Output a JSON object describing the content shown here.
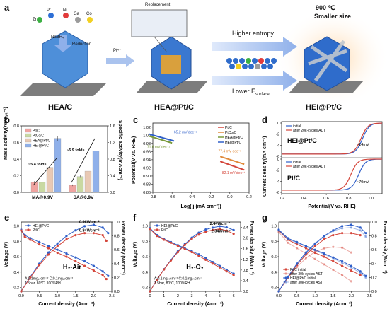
{
  "panel_a": {
    "letter": "a",
    "elements": [
      "Zr",
      "Pt",
      "Ni",
      "Ga",
      "Co"
    ],
    "element_colors": {
      "Zr": "#3cb043",
      "Pt": "#2e6fd6",
      "Ni": "#e23b3b",
      "Ga": "#9b9b9b",
      "Co": "#f2d022"
    },
    "step1_top": "NaBH₄",
    "step1_bottom": "Reduction",
    "step2": "Pt⁴⁺",
    "replacement": "Replacement",
    "higher_entropy": "Higher entropy",
    "lower_esurface": "Lower E",
    "lower_esurface_sub": "surface",
    "temp": "900 ℃",
    "smaller": "Smaller size",
    "label_hea": "HEA/C",
    "label_heapt": "HEA@Pt/C",
    "label_heipt": "HEI@Pt/C"
  },
  "panel_b": {
    "letter": "b",
    "ylabel_left": "Mass activity(Amgₚₜ⁻¹)",
    "ylabel_right": "Specific activity(mAcm⁻²)",
    "xticks": [
      "MA@0.9V",
      "SA@0.9V"
    ],
    "left_ticks": [
      "0.0",
      "0.2",
      "0.4",
      "0.6",
      "0.8"
    ],
    "right_ticks": [
      "0.0",
      "0.4",
      "0.8",
      "1.2",
      "1.6"
    ],
    "fold_ma": "~5.4 folds",
    "fold_sa": "~5.9 folds",
    "legend": [
      "Pt/C",
      "PtCo/C",
      "HEA@Pt/C",
      "HEI@Pt/C"
    ]
  },
  "panel_c": {
    "letter": "c",
    "ylabel": "Potential(V vs. RHE)",
    "xlabel": "Log(|j|(mA cm⁻²))",
    "xticks": [
      "-0.8",
      "-0.6",
      "-0.4",
      "-0.2",
      "0.0",
      "0.2"
    ],
    "yticks": [
      "0.86",
      "0.88",
      "0.90",
      "0.92",
      "0.94",
      "0.96",
      "0.98",
      "1.00",
      "1.02"
    ],
    "legend": [
      "Pt/C",
      "PtCo/C",
      "HEA@Pt/C",
      "HEI@Pt/C"
    ],
    "slopes": [
      "65.2 mV dec⁻¹",
      "71.6 mV dec⁻¹",
      "77.4 mV dec⁻¹",
      "82.1 mV dec⁻¹"
    ]
  },
  "panel_d": {
    "letter": "d",
    "ylabel": "Current density(mA cm⁻²)",
    "xlabel": "Potential(V vs. RHE)",
    "xticks": [
      "0.2",
      "0.4",
      "0.6",
      "0.8",
      "1.0"
    ],
    "yticks_top": [
      "0",
      "-2",
      "-4",
      "-6"
    ],
    "yticks_bottom": [
      "0",
      "-2",
      "-4",
      "-6"
    ],
    "legend": [
      "initial",
      "after 20k-cycles ADT"
    ],
    "top_title": "HEI@Pt/C",
    "top_shift": "~14mV",
    "bottom_title": "Pt/C",
    "bottom_shift": "~70mV"
  },
  "panel_e": {
    "letter": "e",
    "ylabel_left": "Voltage (V)",
    "ylabel_right": "Power density (Wcm⁻²)",
    "xlabel": "Current density (Acm⁻²)",
    "xticks": [
      "0.0",
      "0.5",
      "1.0",
      "1.5",
      "2.0",
      "2.5"
    ],
    "yticks_left": [
      "0.2",
      "0.4",
      "0.6",
      "0.8",
      "1.0"
    ],
    "yticks_right": [
      "0.0",
      "0.2",
      "0.4",
      "0.6",
      "0.8",
      "1.0"
    ],
    "legend": [
      "HEI@Pt/C",
      "Pt/C"
    ],
    "peak1": "0.96Wcm⁻²",
    "peak2": "0.84Wcm⁻²",
    "gas": "H₂-Air",
    "cond1": "A:0.1mgₚₜcm⁻² C:0.1mgₚₜcm⁻²",
    "cond2": "1.5bar, 80°C, 100%RH"
  },
  "panel_f": {
    "letter": "f",
    "ylabel_left": "Voltage (V)",
    "ylabel_right": "Power density (Wcm⁻²)",
    "xlabel": "Current density (Acm⁻²)",
    "xticks": [
      "0",
      "1",
      "2",
      "3",
      "4",
      "5",
      "6"
    ],
    "yticks_left": [
      "0.2",
      "0.4",
      "0.6",
      "0.8",
      "1.0"
    ],
    "yticks_right": [
      "0.0",
      "0.4",
      "0.8",
      "1.2",
      "1.6",
      "2.0",
      "2.4"
    ],
    "legend": [
      "HEI@Pt/C",
      "Pt/C"
    ],
    "peak1": "2.44Wcm⁻²",
    "peak2": "2.34Wcm⁻²",
    "gas": "H₂-O₂",
    "cond1": "A:0.1mgₚₜcm⁻² C:0.1mgₚₜcm⁻²",
    "cond2": "1.5bar, 80°C, 100%RH"
  },
  "panel_g": {
    "letter": "g",
    "ylabel_left": "Voltage (V)",
    "ylabel_right": "Power density(Wcm⁻²)",
    "xlabel": "Current density (Acm⁻²)",
    "xticks": [
      "0.0",
      "0.5",
      "1.0",
      "1.5",
      "2.0",
      "2.5"
    ],
    "yticks_left": [
      "0.2",
      "0.4",
      "0.6",
      "0.8",
      "1.0"
    ],
    "yticks_right": [
      "0.0",
      "0.2",
      "0.4",
      "0.6",
      "0.8",
      "1.0"
    ],
    "legend": [
      "Pt/C initial",
      "after 30k-cycles AST",
      "HEI@Pt/C initial",
      "after 30k-cycles AST"
    ]
  },
  "colors": {
    "red": "#d4453a",
    "blue": "#2f5fc9",
    "pink": "#f0a3a0",
    "lightblue": "#8fb0ea",
    "green": "#c9d9a2",
    "tan": "#e9c9b4"
  },
  "chart_data": [
    {
      "type": "bar",
      "categories": [
        "MA@0.9V",
        "SA@0.9V"
      ],
      "series": [
        {
          "name": "Pt/C",
          "values": [
            0.12,
            0.17
          ]
        },
        {
          "name": "PtCo/C",
          "values": [
            0.12,
            0.38
          ]
        },
        {
          "name": "HEA@Pt/C",
          "values": [
            0.3,
            0.51
          ]
        },
        {
          "name": "HEI@Pt/C",
          "values": [
            0.65,
            1.0
          ]
        }
      ],
      "errors": [
        [
          0.015,
          0.02
        ],
        [
          0.015,
          0.03
        ],
        [
          0.02,
          0.03
        ],
        [
          0.03,
          0.04
        ]
      ],
      "ylim_left": [
        0,
        0.8
      ],
      "ylim_right": [
        0,
        1.6
      ]
    },
    {
      "type": "line",
      "title": "Tafel",
      "xlim": [
        -0.8,
        0.2
      ],
      "ylim": [
        0.86,
        1.03
      ],
      "series": [
        {
          "name": "Pt/C",
          "x": [
            -0.1,
            0.15
          ],
          "y": [
            0.936,
            0.915
          ]
        },
        {
          "name": "PtCo/C",
          "x": [
            -0.1,
            0.15
          ],
          "y": [
            0.948,
            0.929
          ]
        },
        {
          "name": "HEA@Pt/C",
          "x": [
            -0.84,
            -0.6
          ],
          "y": [
            0.998,
            0.981
          ]
        },
        {
          "name": "HEI@Pt/C",
          "x": [
            -0.84,
            -0.58
          ],
          "y": [
            1.003,
            0.986
          ]
        }
      ]
    },
    {
      "type": "line",
      "title": "LSV",
      "xlim": [
        0.2,
        1.1
      ],
      "panels": [
        {
          "title": "HEI@Pt/C",
          "series": [
            {
              "name": "initial",
              "e_half": 0.925
            },
            {
              "name": "after 20k-cycles ADT",
              "e_half": 0.911
            }
          ]
        },
        {
          "title": "Pt/C",
          "series": [
            {
              "name": "initial",
              "e_half": 0.89
            },
            {
              "name": "after 20k-cycles ADT",
              "e_half": 0.82
            }
          ]
        }
      ],
      "ylim": [
        -6,
        0
      ]
    },
    {
      "type": "line",
      "title": "H2-Air",
      "xlim": [
        0,
        2.5
      ],
      "series": [
        {
          "name": "HEI@Pt/C V",
          "x": [
            0.0,
            0.1,
            0.25,
            0.5,
            0.75,
            1.0,
            1.25,
            1.5,
            1.75,
            2.0,
            2.25,
            2.4
          ],
          "y": [
            0.95,
            0.88,
            0.84,
            0.79,
            0.74,
            0.69,
            0.64,
            0.59,
            0.54,
            0.48,
            0.41,
            0.35
          ]
        },
        {
          "name": "Pt/C V",
          "x": [
            0.0,
            0.1,
            0.25,
            0.5,
            0.75,
            1.0,
            1.25,
            1.5,
            1.75,
            2.0,
            2.25,
            2.35
          ],
          "y": [
            0.94,
            0.86,
            0.82,
            0.76,
            0.71,
            0.65,
            0.6,
            0.54,
            0.48,
            0.42,
            0.36,
            0.31
          ]
        },
        {
          "name": "HEI@Pt/C P",
          "x": [
            0.0,
            0.25,
            0.5,
            0.75,
            1.0,
            1.25,
            1.5,
            1.75,
            2.0,
            2.25,
            2.4
          ],
          "y": [
            0.0,
            0.21,
            0.4,
            0.56,
            0.69,
            0.8,
            0.88,
            0.94,
            0.96,
            0.92,
            0.84
          ]
        },
        {
          "name": "Pt/C P",
          "x": [
            0.0,
            0.25,
            0.5,
            0.75,
            1.0,
            1.25,
            1.5,
            1.75,
            2.0,
            2.25,
            2.35
          ],
          "y": [
            0.0,
            0.2,
            0.38,
            0.53,
            0.65,
            0.75,
            0.81,
            0.84,
            0.84,
            0.81,
            0.73
          ]
        }
      ]
    },
    {
      "type": "line",
      "title": "H2-O2",
      "xlim": [
        0,
        6.5
      ],
      "series": [
        {
          "name": "HEI@Pt/C V",
          "x": [
            0,
            0.5,
            1,
            1.5,
            2,
            2.5,
            3,
            3.5,
            4,
            4.5,
            5,
            5.5,
            6
          ],
          "y": [
            0.97,
            0.88,
            0.83,
            0.79,
            0.75,
            0.71,
            0.67,
            0.63,
            0.58,
            0.53,
            0.48,
            0.43,
            0.38
          ]
        },
        {
          "name": "Pt/C V",
          "x": [
            0,
            0.5,
            1,
            1.5,
            2,
            2.5,
            3,
            3.5,
            4,
            4.5,
            5,
            5.5,
            6
          ],
          "y": [
            0.96,
            0.87,
            0.82,
            0.78,
            0.74,
            0.7,
            0.66,
            0.61,
            0.56,
            0.51,
            0.46,
            0.41,
            0.36
          ]
        },
        {
          "name": "HEI@Pt/C P",
          "x": [
            0,
            0.5,
            1,
            1.5,
            2,
            2.5,
            3,
            3.5,
            4,
            4.5,
            5,
            5.5,
            6
          ],
          "y": [
            0,
            0.44,
            0.83,
            1.18,
            1.5,
            1.77,
            2.01,
            2.2,
            2.32,
            2.39,
            2.44,
            2.4,
            2.3
          ]
        },
        {
          "name": "Pt/C P",
          "x": [
            0,
            0.5,
            1,
            1.5,
            2,
            2.5,
            3,
            3.5,
            4,
            4.5,
            5,
            5.5,
            6
          ],
          "y": [
            0,
            0.43,
            0.82,
            1.16,
            1.47,
            1.74,
            1.97,
            2.13,
            2.24,
            2.3,
            2.34,
            2.28,
            2.16
          ]
        }
      ]
    },
    {
      "type": "line",
      "title": "AST",
      "xlim": [
        0,
        2.5
      ],
      "series": [
        {
          "name": "Pt/C initial V",
          "x": [
            0,
            0.25,
            0.5,
            0.75,
            1.0,
            1.25,
            1.5,
            1.75,
            2.0,
            2.25
          ],
          "y": [
            0.94,
            0.82,
            0.76,
            0.71,
            0.65,
            0.6,
            0.54,
            0.48,
            0.42,
            0.36
          ]
        },
        {
          "name": "Pt/C AST V",
          "x": [
            0,
            0.25,
            0.5,
            0.75,
            1.0,
            1.25,
            1.5,
            1.75,
            2.0
          ],
          "y": [
            0.92,
            0.78,
            0.71,
            0.64,
            0.57,
            0.5,
            0.43,
            0.36,
            0.28
          ]
        },
        {
          "name": "HEI@Pt/C initial V",
          "x": [
            0,
            0.25,
            0.5,
            0.75,
            1.0,
            1.25,
            1.5,
            1.75,
            2.0,
            2.25,
            2.4
          ],
          "y": [
            0.95,
            0.84,
            0.79,
            0.74,
            0.69,
            0.64,
            0.59,
            0.54,
            0.48,
            0.41,
            0.35
          ]
        },
        {
          "name": "HEI@Pt/C AST V",
          "x": [
            0,
            0.25,
            0.5,
            0.75,
            1.0,
            1.25,
            1.5,
            1.75,
            2.0,
            2.25,
            2.4
          ],
          "y": [
            0.94,
            0.83,
            0.78,
            0.73,
            0.68,
            0.63,
            0.58,
            0.52,
            0.46,
            0.39,
            0.33
          ]
        },
        {
          "name": "Pt/C initial P",
          "x": [
            0,
            0.25,
            0.5,
            0.75,
            1.0,
            1.25,
            1.5,
            1.75,
            2.0,
            2.25
          ],
          "y": [
            0,
            0.2,
            0.38,
            0.53,
            0.65,
            0.75,
            0.81,
            0.84,
            0.84,
            0.81
          ]
        },
        {
          "name": "Pt/C AST P",
          "x": [
            0,
            0.25,
            0.5,
            0.75,
            1.0,
            1.25,
            1.5,
            1.75,
            2.0
          ],
          "y": [
            0,
            0.19,
            0.35,
            0.48,
            0.57,
            0.62,
            0.64,
            0.63,
            0.56
          ]
        },
        {
          "name": "HEI@Pt/C initial P",
          "x": [
            0,
            0.25,
            0.5,
            0.75,
            1.0,
            1.25,
            1.5,
            1.75,
            2.0,
            2.25,
            2.4
          ],
          "y": [
            0,
            0.21,
            0.4,
            0.56,
            0.69,
            0.8,
            0.88,
            0.94,
            0.96,
            0.92,
            0.84
          ]
        },
        {
          "name": "HEI@Pt/C AST P",
          "x": [
            0,
            0.25,
            0.5,
            0.75,
            1.0,
            1.25,
            1.5,
            1.75,
            2.0,
            2.25,
            2.4
          ],
          "y": [
            0,
            0.21,
            0.39,
            0.55,
            0.68,
            0.79,
            0.87,
            0.91,
            0.92,
            0.88,
            0.79
          ]
        }
      ]
    }
  ]
}
